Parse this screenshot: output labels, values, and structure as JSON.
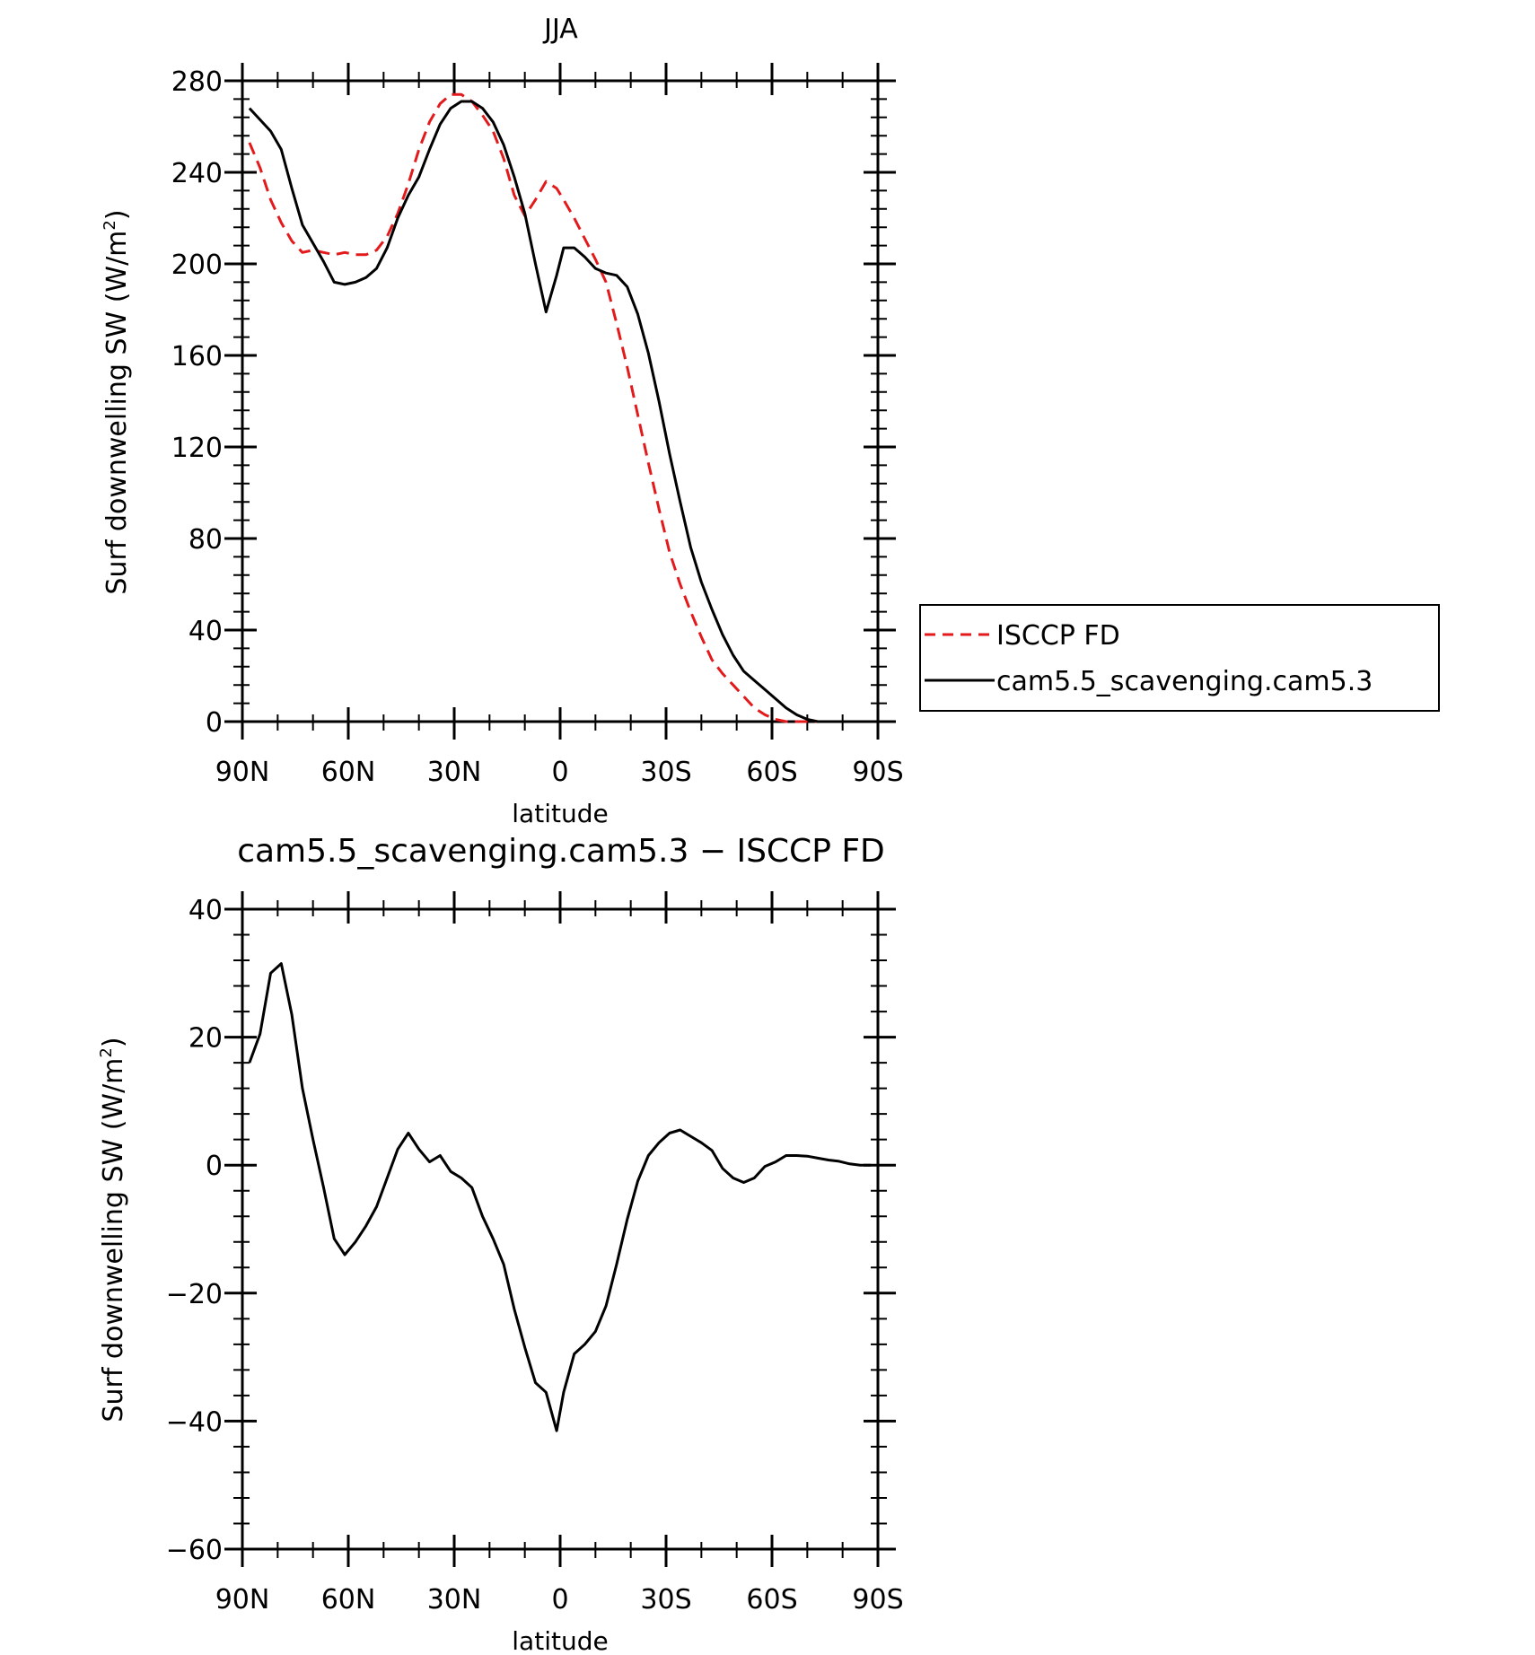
{
  "chart_data": [
    {
      "type": "line",
      "title": "JJA",
      "xlabel": "latitude",
      "ylabel": "Surf downwelling SW (W/m",
      "ylabel_sup": "2",
      "ylabel_close": ")",
      "xlim": [
        90,
        -90
      ],
      "ylim": [
        0,
        280
      ],
      "x_ticks": [
        90,
        60,
        30,
        0,
        -30,
        -60,
        -90
      ],
      "x_tick_labels": [
        "90N",
        "60N",
        "30N",
        "0",
        "30S",
        "60S",
        "90S"
      ],
      "y_ticks": [
        0,
        40,
        80,
        120,
        160,
        200,
        240,
        280
      ],
      "y_tick_labels": [
        "0",
        "40",
        "80",
        "120",
        "160",
        "200",
        "240",
        "280"
      ],
      "grid": false,
      "legend_position": "right",
      "series": [
        {
          "name": "ISCCP FD",
          "color": "#e31a1c",
          "dash": true,
          "x": [
            88,
            85,
            82,
            79,
            76,
            73,
            70,
            67,
            64,
            61,
            58,
            55,
            52,
            49,
            46,
            43,
            40,
            37,
            34,
            31,
            28,
            25,
            22,
            19,
            16,
            13,
            10,
            7,
            4,
            1,
            -1,
            -4,
            -7,
            -10,
            -13,
            -16,
            -19,
            -22,
            -25,
            -28,
            -31,
            -34,
            -37,
            -40,
            -43,
            -46,
            -49,
            -52,
            -55,
            -58,
            -61,
            -64,
            -67,
            -70,
            -73,
            -76,
            -79,
            -82,
            -85,
            -88
          ],
          "y": [
            253,
            242,
            228,
            218,
            210,
            205,
            206,
            205,
            204,
            205,
            204,
            204,
            206,
            212,
            222,
            235,
            250,
            262,
            270,
            274,
            274,
            271,
            265,
            258,
            246,
            230,
            221,
            228,
            236,
            233,
            228,
            220,
            211,
            202,
            192,
            174,
            155,
            134,
            113,
            93,
            74,
            60,
            48,
            37,
            27,
            21,
            16,
            11,
            6,
            3,
            1,
            0,
            0,
            0,
            0,
            0,
            0,
            0,
            0,
            0
          ]
        },
        {
          "name": "cam5.5_scavenging.cam5.3",
          "color": "#000000",
          "dash": false,
          "x": [
            88,
            85,
            82,
            79,
            76,
            73,
            70,
            67,
            64,
            61,
            58,
            55,
            52,
            49,
            46,
            43,
            40,
            37,
            34,
            31,
            28,
            25,
            22,
            19,
            16,
            13,
            10,
            7,
            4,
            1,
            -1,
            -4,
            -7,
            -10,
            -13,
            -16,
            -19,
            -22,
            -25,
            -28,
            -31,
            -34,
            -37,
            -40,
            -43,
            -46,
            -49,
            -52,
            -55,
            -58,
            -61,
            -64,
            -67,
            -70,
            -73,
            -76,
            -79,
            -82,
            -85,
            -88
          ],
          "y": [
            268,
            263,
            258,
            250,
            233,
            217,
            209,
            201,
            192,
            191,
            192,
            194,
            198,
            207,
            220,
            230,
            238,
            250,
            261,
            268,
            271,
            271,
            268,
            262,
            252,
            238,
            222,
            200,
            179,
            195,
            207,
            207,
            203,
            198,
            196,
            195,
            190,
            178,
            161,
            140,
            117,
            96,
            76,
            61,
            49,
            38,
            29,
            22,
            18,
            14,
            10,
            6,
            3,
            1,
            0,
            0,
            0,
            0,
            0,
            0
          ]
        }
      ]
    },
    {
      "type": "line",
      "title": "cam5.5_scavenging.cam5.3 − ISCCP FD",
      "xlabel": "latitude",
      "ylabel": "Surf downwelling SW (W/m",
      "ylabel_sup": "2",
      "ylabel_close": ")",
      "xlim": [
        90,
        -90
      ],
      "ylim": [
        -60,
        40
      ],
      "x_ticks": [
        90,
        60,
        30,
        0,
        -30,
        -60,
        -90
      ],
      "x_tick_labels": [
        "90N",
        "60N",
        "30N",
        "0",
        "30S",
        "60S",
        "90S"
      ],
      "y_ticks": [
        -60,
        -40,
        -20,
        0,
        20,
        40
      ],
      "y_tick_labels": [
        "−60",
        "−40",
        "−20",
        "0",
        "20",
        "40"
      ],
      "grid": false,
      "series": [
        {
          "color": "#000000",
          "x": [
            88,
            85,
            82,
            79,
            76,
            73,
            70,
            67,
            64,
            61,
            58,
            55,
            52,
            49,
            46,
            43,
            40,
            37,
            34,
            31,
            28,
            25,
            22,
            19,
            16,
            13,
            10,
            7,
            4,
            1,
            -1,
            -4,
            -7,
            -10,
            -13,
            -16,
            -19,
            -22,
            -25,
            -28,
            -31,
            -34,
            -37,
            -40,
            -43,
            -46,
            -49,
            -52,
            -55,
            -58,
            -61,
            -64,
            -67,
            -70,
            -73,
            -76,
            -79,
            -82,
            -85,
            -88
          ],
          "y": [
            16,
            20.5,
            30,
            31.5,
            23.5,
            12,
            4,
            -3.5,
            -11.5,
            -14,
            -12,
            -9.5,
            -6.5,
            -2,
            2.5,
            5,
            2.5,
            0.5,
            1.5,
            -1,
            -2,
            -3.5,
            -8,
            -11.5,
            -15.5,
            -22.5,
            -28.5,
            -34,
            -35.5,
            -41.5,
            -35.5,
            -29.5,
            -28,
            -26,
            -22,
            -15.5,
            -8.5,
            -2.5,
            1.5,
            3.5,
            5,
            5.5,
            4.5,
            3.5,
            2.3,
            -0.5,
            -2,
            -2.7,
            -2,
            -0.2,
            0.5,
            1.5,
            1.5,
            1.4,
            1.1,
            0.8,
            0.6,
            0.2,
            0,
            0
          ]
        }
      ]
    }
  ]
}
